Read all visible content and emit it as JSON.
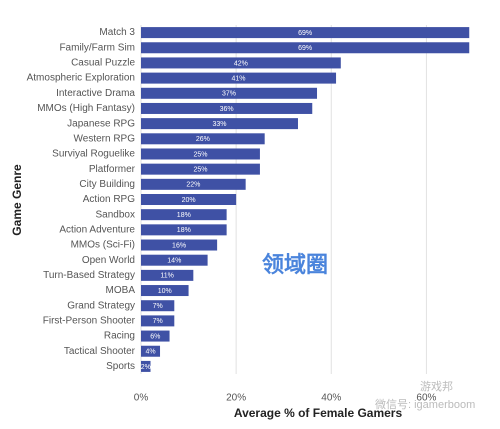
{
  "chart_data": {
    "type": "barh",
    "y_label": "Game Genre",
    "x_label": "Average % of Female Gamers",
    "categories": [
      "Match 3",
      "Family/Farm Sim",
      "Casual Puzzle",
      "Atmospheric Exploration",
      "Interactive Drama",
      "MMOs (High Fantasy)",
      "Japanese RPG",
      "Western RPG",
      "Surviyal Roguelike",
      "Platformer",
      "City Building",
      "Action RPG",
      "Sandbox",
      "Action Adventure",
      "MMOs (Sci-Fi)",
      "Open World",
      "Turn-Based Strategy",
      "MOBA",
      "Grand Strategy",
      "First-Person Shooter",
      "Racing",
      "Tactical Shooter",
      "Sports"
    ],
    "values": [
      69,
      69,
      42,
      41,
      37,
      36,
      33,
      26,
      25,
      25,
      22,
      20,
      18,
      18,
      16,
      14,
      11,
      10,
      7,
      7,
      6,
      4,
      2
    ],
    "value_labels": [
      "69%",
      "69%",
      "42%",
      "41%",
      "37%",
      "36%",
      "33%",
      "26%",
      "25%",
      "25%",
      "22%",
      "20%",
      "18%",
      "18%",
      "16%",
      "14%",
      "11%",
      "10%",
      "7%",
      "7%",
      "6%",
      "4%",
      "2%"
    ],
    "color": "#3f51a5",
    "xlim": [
      0,
      70
    ],
    "xticks": [
      {
        "value": 0,
        "label": "0%"
      },
      {
        "value": 20,
        "label": "20%"
      },
      {
        "value": 40,
        "label": "40%"
      },
      {
        "value": 60,
        "label": "60%"
      }
    ],
    "grid": true,
    "watermarks": [
      "领域圈",
      "微信号: igamerboom",
      "游戏邦"
    ]
  }
}
